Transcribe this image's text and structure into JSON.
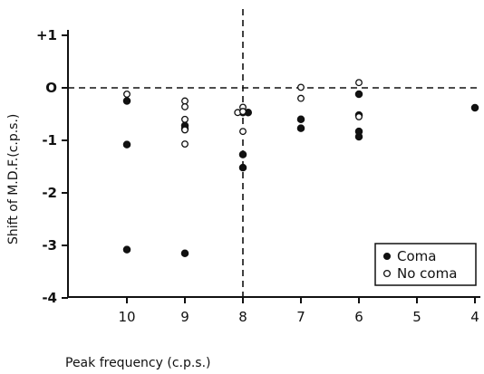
{
  "chart_data": {
    "type": "scatter",
    "title": "",
    "xlabel": "Peak frequency (c.p.s.)",
    "ylabel": "Shift of M.D.F.(c.p.s.)",
    "xlim": [
      11,
      4
    ],
    "ylim": [
      -4,
      1
    ],
    "x_ticks": [
      10,
      9,
      8,
      7,
      6,
      5,
      4
    ],
    "x_tick_labels": [
      "10",
      "9",
      "8",
      "7",
      "6",
      "5",
      "4"
    ],
    "y_ticks": [
      1,
      0,
      -1,
      -2,
      -3,
      -4
    ],
    "y_tick_labels": [
      "+1",
      "O",
      "-1",
      "-2",
      "-3",
      "-4"
    ],
    "grid": false,
    "reference_lines": [
      {
        "orientation": "horizontal",
        "value": 0,
        "style": "dashed"
      },
      {
        "orientation": "vertical",
        "value": 8,
        "style": "dashed"
      }
    ],
    "legend_position": "bottom-right",
    "series": [
      {
        "name": "Coma",
        "marker": "filled-circle",
        "color": "#111111",
        "points": [
          [
            10,
            -0.25
          ],
          [
            10,
            -1.08
          ],
          [
            10,
            -3.08
          ],
          [
            9,
            -0.72
          ],
          [
            9,
            -0.78
          ],
          [
            9,
            -3.15
          ],
          [
            8,
            -0.47
          ],
          [
            7.91,
            -0.47
          ],
          [
            8,
            -1.27
          ],
          [
            8,
            -1.52
          ],
          [
            7,
            -0.6
          ],
          [
            7,
            -0.77
          ],
          [
            6,
            -0.12
          ],
          [
            6,
            -0.52
          ],
          [
            6,
            -0.83
          ],
          [
            6,
            -0.93
          ],
          [
            4,
            -0.38
          ]
        ]
      },
      {
        "name": "No coma",
        "marker": "open-circle",
        "color": "#111111",
        "points": [
          [
            10,
            -0.12
          ],
          [
            9,
            -0.25
          ],
          [
            9,
            -0.36
          ],
          [
            9,
            -0.6
          ],
          [
            9,
            -0.8
          ],
          [
            9,
            -1.07
          ],
          [
            8.09,
            -0.47
          ],
          [
            8,
            -0.37
          ],
          [
            8,
            -0.45
          ],
          [
            8,
            -0.83
          ],
          [
            7,
            0.01
          ],
          [
            7,
            -0.2
          ],
          [
            6,
            0.1
          ],
          [
            6,
            -0.55
          ]
        ]
      }
    ]
  }
}
